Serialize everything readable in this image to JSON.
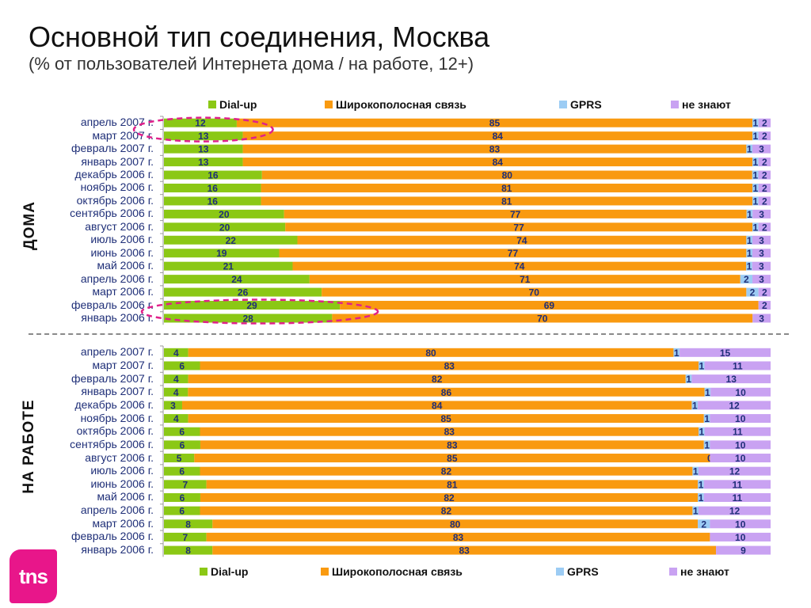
{
  "title": "Основной тип соединения, Москва",
  "subtitle": "(% от пользователей Интернета дома / на работе, 12+)",
  "colors": {
    "dialup": "#8bc815",
    "broadband": "#f99a10",
    "gprs": "#9cccf4",
    "unknown": "#c9a2f2",
    "value_text": "#1f2f78",
    "highlight": "#e0208a"
  },
  "legend": {
    "dialup": "Dial-up",
    "broadband": "Широкополосная связь",
    "gprs": "GPRS",
    "unknown": "не знают"
  },
  "sections": {
    "home": "ДОМА",
    "work": "НА РАБОТЕ"
  },
  "logo_text": "tns",
  "chart_data": [
    {
      "type": "bar",
      "orientation": "horizontal",
      "stacked": true,
      "section": "ДОМА",
      "categories": [
        "апрель 2007 г.",
        "март 2007 г.",
        "февраль 2007 г.",
        "январь 2007 г.",
        "декабрь 2006 г.",
        "ноябрь 2006 г.",
        "октябрь 2006 г.",
        "сентябрь 2006 г.",
        "август 2006 г.",
        "июль 2006 г.",
        "июнь 2006 г.",
        "май 2006 г.",
        "апрель 2006 г.",
        "март 2006 г.",
        "февраль 2006 г.",
        "январь 2006 г."
      ],
      "series": [
        {
          "name": "Dial-up",
          "values": [
            12,
            13,
            13,
            13,
            16,
            16,
            16,
            20,
            20,
            22,
            19,
            21,
            24,
            26,
            29,
            28
          ]
        },
        {
          "name": "Широкополосная связь",
          "values": [
            85,
            84,
            83,
            84,
            80,
            81,
            81,
            77,
            77,
            74,
            77,
            74,
            71,
            70,
            69,
            70
          ]
        },
        {
          "name": "GPRS",
          "values": [
            1,
            1,
            1,
            1,
            1,
            1,
            1,
            1,
            1,
            1,
            1,
            1,
            2,
            2,
            null,
            null
          ]
        },
        {
          "name": "не знают",
          "values": [
            2,
            2,
            3,
            2,
            2,
            2,
            2,
            3,
            2,
            3,
            3,
            3,
            3,
            2,
            2,
            3
          ]
        }
      ],
      "highlighted_categories": [
        "март 2007 г.",
        "февраль 2006 г."
      ],
      "legend_position": "top"
    },
    {
      "type": "bar",
      "orientation": "horizontal",
      "stacked": true,
      "section": "НА РАБОТЕ",
      "categories": [
        "апрель 2007 г.",
        "март 2007 г.",
        "февраль 2007 г.",
        "январь 2007 г.",
        "декабрь 2006 г.",
        "ноябрь 2006 г.",
        "октябрь 2006 г.",
        "сентябрь 2006 г.",
        "август 2006 г.",
        "июль 2006 г.",
        "июнь 2006 г.",
        "май 2006 г.",
        "апрель 2006 г.",
        "март 2006 г.",
        "февраль 2006 г.",
        "январь 2006 г."
      ],
      "series": [
        {
          "name": "Dial-up",
          "values": [
            4,
            6,
            4,
            4,
            3,
            4,
            6,
            6,
            5,
            6,
            7,
            6,
            6,
            8,
            7,
            8
          ]
        },
        {
          "name": "Широкополосная связь",
          "values": [
            80,
            83,
            82,
            86,
            84,
            85,
            83,
            83,
            85,
            82,
            81,
            82,
            82,
            80,
            83,
            83
          ]
        },
        {
          "name": "GPRS",
          "values": [
            1,
            1,
            1,
            1,
            1,
            1,
            1,
            1,
            0,
            1,
            1,
            1,
            1,
            2,
            null,
            null
          ]
        },
        {
          "name": "не знают",
          "values": [
            15,
            11,
            13,
            10,
            12,
            10,
            11,
            10,
            10,
            12,
            11,
            11,
            12,
            10,
            10,
            9
          ]
        }
      ],
      "legend_position": "bottom"
    }
  ]
}
